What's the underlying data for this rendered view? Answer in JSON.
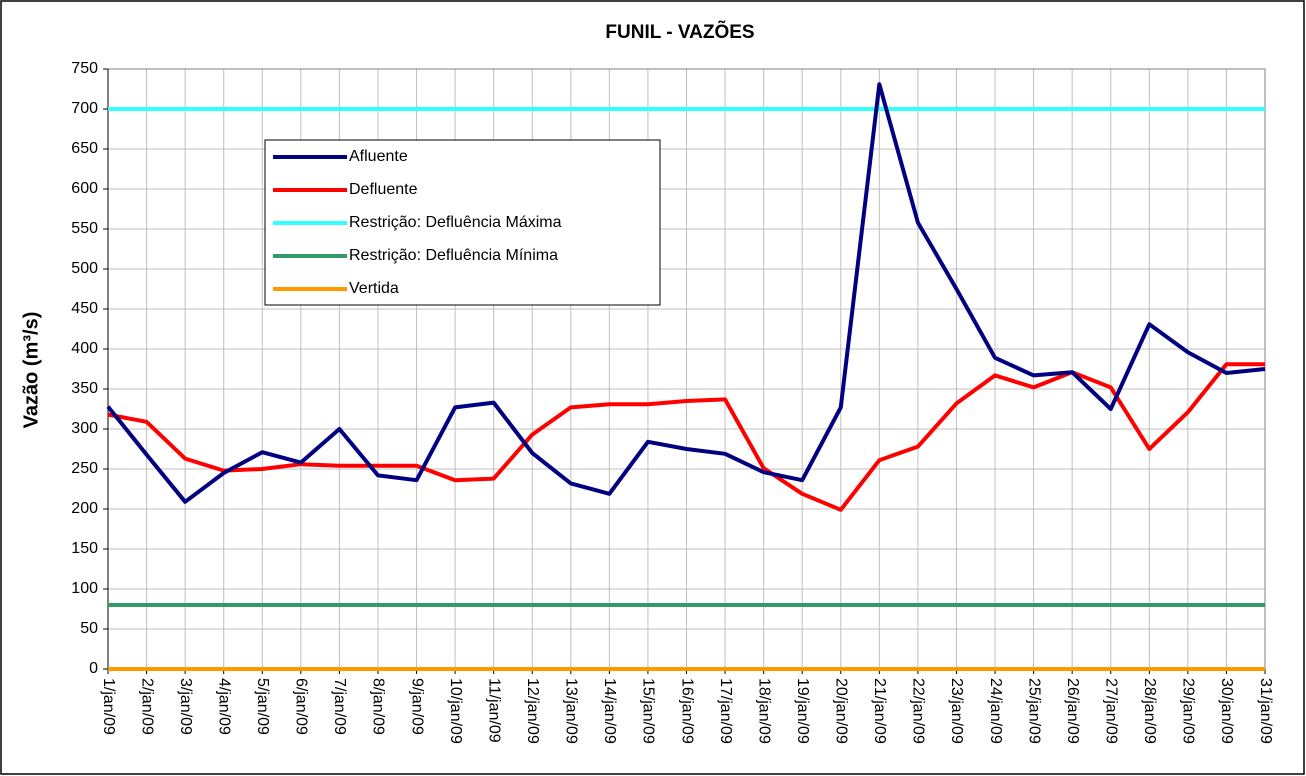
{
  "chart_data": {
    "type": "line",
    "title": "FUNIL - VAZÕES",
    "ylabel": "Vazão (m³/s)",
    "categories": [
      "1/jan/09",
      "2/jan/09",
      "3/jan/09",
      "4/jan/09",
      "5/jan/09",
      "6/jan/09",
      "7/jan/09",
      "8/jan/09",
      "9/jan/09",
      "10/jan/09",
      "11/jan/09",
      "12/jan/09",
      "13/jan/09",
      "14/jan/09",
      "15/jan/09",
      "16/jan/09",
      "17/jan/09",
      "18/jan/09",
      "19/jan/09",
      "20/jan/09",
      "21/jan/09",
      "22/jan/09",
      "23/jan/09",
      "24/jan/09",
      "25/jan/09",
      "26/jan/09",
      "27/jan/09",
      "28/jan/09",
      "29/jan/09",
      "30/jan/09",
      "31/jan/09"
    ],
    "series": [
      {
        "name": "Afluente",
        "color": "#000080",
        "values": [
          328,
          268,
          209,
          245,
          271,
          258,
          300,
          242,
          236,
          327,
          333,
          270,
          232,
          219,
          284,
          275,
          269,
          246,
          236,
          327,
          731,
          558,
          475,
          389,
          367,
          371,
          325,
          431,
          396,
          370,
          375
        ]
      },
      {
        "name": "Defluente",
        "color": "#ff0000",
        "values": [
          318,
          309,
          263,
          248,
          250,
          256,
          254,
          254,
          254,
          236,
          238,
          293,
          327,
          331,
          331,
          335,
          337,
          251,
          219,
          199,
          261,
          278,
          332,
          367,
          352,
          371,
          352,
          275,
          321,
          381,
          381
        ]
      },
      {
        "name": "Restrição: Defluência Máxima",
        "color": "#33ffff",
        "values": [
          700,
          700,
          700,
          700,
          700,
          700,
          700,
          700,
          700,
          700,
          700,
          700,
          700,
          700,
          700,
          700,
          700,
          700,
          700,
          700,
          700,
          700,
          700,
          700,
          700,
          700,
          700,
          700,
          700,
          700,
          700
        ]
      },
      {
        "name": "Restrição: Defluência Mínima",
        "color": "#339966",
        "values": [
          80,
          80,
          80,
          80,
          80,
          80,
          80,
          80,
          80,
          80,
          80,
          80,
          80,
          80,
          80,
          80,
          80,
          80,
          80,
          80,
          80,
          80,
          80,
          80,
          80,
          80,
          80,
          80,
          80,
          80,
          80
        ]
      },
      {
        "name": "Vertida",
        "color": "#ff9900",
        "values": [
          0,
          0,
          0,
          0,
          0,
          0,
          0,
          0,
          0,
          0,
          0,
          0,
          0,
          0,
          0,
          0,
          0,
          0,
          0,
          0,
          0,
          0,
          0,
          0,
          0,
          0,
          0,
          0,
          0,
          0,
          0
        ]
      }
    ],
    "ylim": [
      0,
      750
    ],
    "yticks": [
      0,
      50,
      100,
      150,
      200,
      250,
      300,
      350,
      400,
      450,
      500,
      550,
      600,
      650,
      700,
      750
    ],
    "grid": true,
    "legend": "upper left"
  }
}
